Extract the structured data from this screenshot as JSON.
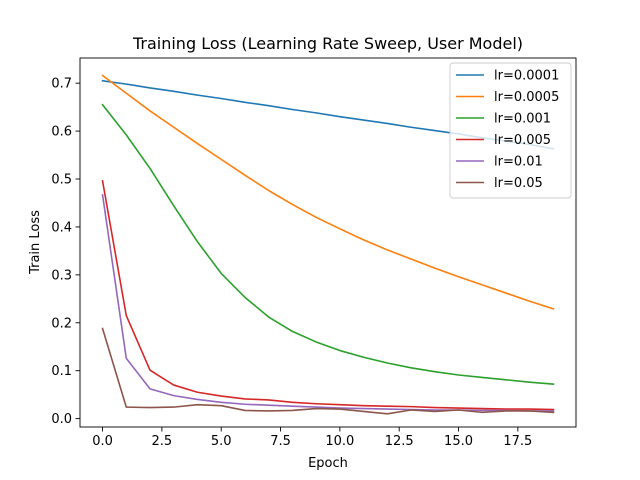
{
  "chart_data": {
    "type": "line",
    "title": "Training Loss (Learning Rate Sweep, User Model)",
    "xlabel": "Epoch",
    "ylabel": "Train Loss",
    "xlim": [
      -0.95,
      19.95
    ],
    "ylim": [
      -0.0175,
      0.7525
    ],
    "xticks": [
      0.0,
      2.5,
      5.0,
      7.5,
      10.0,
      12.5,
      15.0,
      17.5
    ],
    "xtick_labels": [
      "0.0",
      "2.5",
      "5.0",
      "7.5",
      "10.0",
      "12.5",
      "15.0",
      "17.5"
    ],
    "yticks": [
      0.0,
      0.1,
      0.2,
      0.3,
      0.4,
      0.5,
      0.6,
      0.7
    ],
    "ytick_labels": [
      "0.0",
      "0.1",
      "0.2",
      "0.3",
      "0.4",
      "0.5",
      "0.6",
      "0.7"
    ],
    "grid": false,
    "legend_position": "top-right",
    "x": [
      0,
      1,
      2,
      3,
      4,
      5,
      6,
      7,
      8,
      9,
      10,
      11,
      12,
      13,
      14,
      15,
      16,
      17,
      18,
      19
    ],
    "series": [
      {
        "name": "lr=0.0001",
        "color": "#1f77b4",
        "values": [
          0.705,
          0.698,
          0.69,
          0.683,
          0.675,
          0.668,
          0.66,
          0.653,
          0.645,
          0.638,
          0.63,
          0.623,
          0.616,
          0.608,
          0.601,
          0.594,
          0.586,
          0.579,
          0.572,
          0.563
        ]
      },
      {
        "name": "lr=0.0005",
        "color": "#ff7f0e",
        "values": [
          0.716,
          0.679,
          0.642,
          0.608,
          0.574,
          0.541,
          0.508,
          0.476,
          0.447,
          0.42,
          0.396,
          0.373,
          0.352,
          0.333,
          0.314,
          0.296,
          0.279,
          0.262,
          0.245,
          0.229
        ]
      },
      {
        "name": "lr=0.001",
        "color": "#2ca02c",
        "values": [
          0.655,
          0.592,
          0.522,
          0.444,
          0.369,
          0.303,
          0.253,
          0.212,
          0.182,
          0.16,
          0.142,
          0.128,
          0.116,
          0.106,
          0.098,
          0.091,
          0.086,
          0.081,
          0.076,
          0.072
        ]
      },
      {
        "name": "lr=0.005",
        "color": "#d62728",
        "values": [
          0.496,
          0.215,
          0.101,
          0.07,
          0.055,
          0.047,
          0.041,
          0.039,
          0.034,
          0.031,
          0.029,
          0.027,
          0.026,
          0.025,
          0.023,
          0.022,
          0.021,
          0.02,
          0.02,
          0.019
        ]
      },
      {
        "name": "lr=0.01",
        "color": "#9467bd",
        "values": [
          0.467,
          0.126,
          0.062,
          0.048,
          0.04,
          0.034,
          0.03,
          0.028,
          0.026,
          0.024,
          0.022,
          0.021,
          0.02,
          0.019,
          0.018,
          0.018,
          0.017,
          0.017,
          0.016,
          0.016
        ]
      },
      {
        "name": "lr=0.05",
        "color": "#8c564b",
        "values": [
          0.188,
          0.024,
          0.023,
          0.024,
          0.029,
          0.027,
          0.017,
          0.016,
          0.017,
          0.021,
          0.02,
          0.015,
          0.01,
          0.018,
          0.015,
          0.018,
          0.013,
          0.016,
          0.016,
          0.013
        ]
      }
    ]
  }
}
